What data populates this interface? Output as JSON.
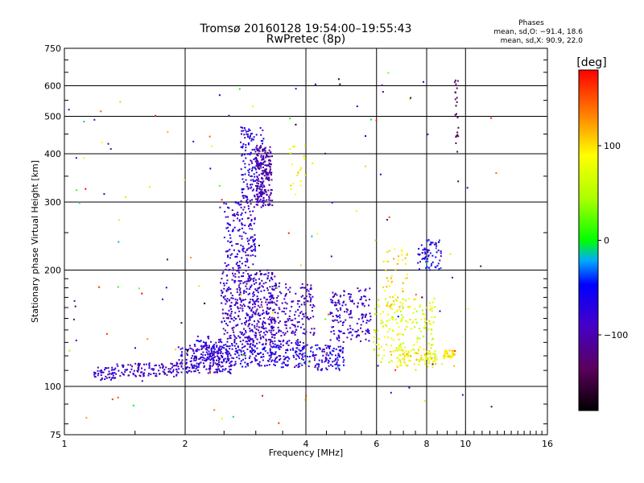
{
  "chart_data": {
    "type": "scatter",
    "title": "Tromsø 20160128 19:54:00–19:55:43",
    "subtitle": "RwPretec (8p)",
    "xlabel": "Frequency [MHz]",
    "ylabel": "Stationary phase Virtual Height [km]",
    "x_scale": "log",
    "y_scale": "log",
    "xlim": [
      1,
      16
    ],
    "ylim": [
      75,
      750
    ],
    "x_ticks": [
      1,
      2,
      4,
      6,
      8,
      10,
      16
    ],
    "x_tick_labels": [
      "1",
      "2",
      "4",
      "6",
      "8",
      "10",
      "16"
    ],
    "y_ticks": [
      75,
      100,
      200,
      300,
      400,
      500,
      600,
      750
    ],
    "y_tick_labels": [
      "75",
      "100",
      "200",
      "300",
      "400",
      "500",
      "600",
      "750"
    ],
    "grid": true,
    "stats": {
      "heading": "Phases",
      "line_o": "mean, sd,O: −91.4, 18.6",
      "line_x": "mean, sd,X:  90.9, 22.0"
    },
    "colorbar": {
      "label": "[deg]",
      "range": [
        -180,
        180
      ],
      "ticks": [
        100,
        0,
        -100
      ],
      "tick_labels": [
        "100",
        "0",
        "−100"
      ],
      "colormap": "rainbow (black → purple → blue → cyan → green → yellow → orange → red)"
    },
    "series": [
      {
        "clusters": [
          {
            "freq": [
              1.18,
              1.35
            ],
            "height": [
              103,
              112
            ],
            "phase": [
              -110,
              -60
            ],
            "count": 50
          },
          {
            "freq": [
              1.35,
              2.0
            ],
            "height": [
              106,
              115
            ],
            "phase": [
              -115,
              -60
            ],
            "count": 110
          },
          {
            "freq": [
              1.9,
              2.6
            ],
            "height": [
              108,
              128
            ],
            "phase": [
              -115,
              -50
            ],
            "count": 190
          },
          {
            "freq": [
              2.1,
              3.0
            ],
            "height": [
              112,
              135
            ],
            "phase": [
              -110,
              -40
            ],
            "count": 200
          },
          {
            "freq": [
              3.0,
              4.0
            ],
            "height": [
              112,
              132
            ],
            "phase": [
              -110,
              -40
            ],
            "count": 180
          },
          {
            "freq": [
              4.0,
              5.0
            ],
            "height": [
              110,
              128
            ],
            "phase": [
              -110,
              -40
            ],
            "count": 110
          },
          {
            "freq": [
              2.45,
              3.35
            ],
            "height": [
              130,
              200
            ],
            "phase": [
              -115,
              -60
            ],
            "count": 420
          },
          {
            "freq": [
              2.5,
              3.0
            ],
            "height": [
              200,
              300
            ],
            "phase": [
              -110,
              -50
            ],
            "count": 170
          },
          {
            "freq": [
              2.75,
              3.15
            ],
            "height": [
              300,
              470
            ],
            "phase": [
              -110,
              -40
            ],
            "count": 170
          },
          {
            "freq": [
              3.0,
              3.3
            ],
            "height": [
              290,
              420
            ],
            "phase": [
              -115,
              -95
            ],
            "count": 200
          },
          {
            "freq": [
              3.2,
              4.2
            ],
            "height": [
              135,
              185
            ],
            "phase": [
              -115,
              -70
            ],
            "count": 180
          },
          {
            "freq": [
              4.6,
              5.8
            ],
            "height": [
              130,
              180
            ],
            "phase": [
              -115,
              -55
            ],
            "count": 160
          },
          {
            "freq": [
              5.9,
              8.4
            ],
            "height": [
              115,
              170
            ],
            "phase": [
              40,
              110
            ],
            "count": 180
          },
          {
            "freq": [
              6.5,
              8.8
            ],
            "height": [
              112,
              125
            ],
            "phase": [
              60,
              120
            ],
            "count": 90
          },
          {
            "freq": [
              7.6,
              8.7
            ],
            "height": [
              200,
              240
            ],
            "phase": [
              -100,
              -30
            ],
            "count": 70
          },
          {
            "freq": [
              6.2,
              7.2
            ],
            "height": [
              160,
              230
            ],
            "phase": [
              70,
              130
            ],
            "count": 50
          },
          {
            "freq": [
              8.8,
              9.4
            ],
            "height": [
              118,
              124
            ],
            "phase": [
              80,
              120
            ],
            "count": 40
          },
          {
            "freq": [
              3.6,
              4.0
            ],
            "height": [
              310,
              420
            ],
            "phase": [
              70,
              120
            ],
            "count": 22
          },
          {
            "freq": [
              9.4,
              9.6
            ],
            "height": [
              400,
              620
            ],
            "phase": [
              -150,
              -120
            ],
            "count": 22
          },
          {
            "freq": [
              1.0,
              12.0
            ],
            "height": [
              80,
              650
            ],
            "phase": [
              -180,
              180
            ],
            "count": 140
          }
        ]
      }
    ]
  }
}
